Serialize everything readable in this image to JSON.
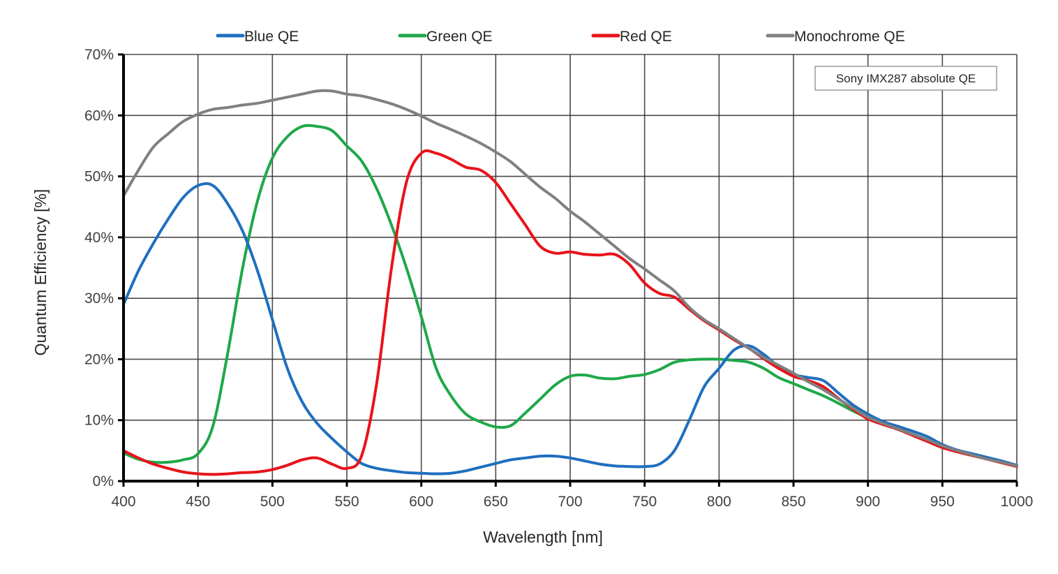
{
  "chart_data": {
    "type": "line",
    "title": "",
    "annotation": "Sony IMX287 absolute QE",
    "xlabel": "Wavelength [nm]",
    "ylabel": "Quantum Efficiency [%]",
    "xlim": [
      400,
      1000
    ],
    "ylim": [
      0,
      70
    ],
    "x_ticks": [
      400,
      450,
      500,
      550,
      600,
      650,
      700,
      750,
      800,
      850,
      900,
      950,
      1000
    ],
    "x_tick_labels": [
      "400",
      "450",
      "500",
      "550",
      "600",
      "650",
      "700",
      "750",
      "800",
      "850",
      "900",
      "950",
      "1000"
    ],
    "y_ticks": [
      0,
      10,
      20,
      30,
      40,
      50,
      60,
      70
    ],
    "y_tick_labels": [
      "0%",
      "10%",
      "20%",
      "30%",
      "40%",
      "50%",
      "60%",
      "70%"
    ],
    "grid": true,
    "legend_position": "top",
    "x": [
      400,
      410,
      420,
      430,
      440,
      450,
      460,
      470,
      480,
      490,
      500,
      510,
      520,
      530,
      540,
      550,
      560,
      570,
      580,
      590,
      600,
      610,
      620,
      630,
      640,
      650,
      660,
      670,
      680,
      690,
      700,
      710,
      720,
      730,
      740,
      750,
      760,
      770,
      780,
      790,
      800,
      810,
      820,
      830,
      840,
      850,
      860,
      870,
      880,
      890,
      900,
      910,
      920,
      930,
      940,
      950,
      960,
      970,
      980,
      990,
      1000
    ],
    "series": [
      {
        "name": "Blue QE",
        "color": "#1f6fbf",
        "values": [
          29,
          34.5,
          39,
          43,
          46.5,
          48.5,
          48.5,
          45.5,
          41,
          34.5,
          26.5,
          18.5,
          13,
          9.5,
          7,
          4.8,
          2.9,
          2.1,
          1.7,
          1.4,
          1.3,
          1.2,
          1.3,
          1.7,
          2.3,
          2.9,
          3.5,
          3.8,
          4.1,
          4.1,
          3.8,
          3.3,
          2.8,
          2.5,
          2.4,
          2.4,
          2.8,
          5,
          10,
          15.5,
          18.5,
          21.5,
          22.2,
          20.8,
          18.8,
          17.5,
          17,
          16.5,
          14.5,
          12.5,
          11,
          9.8,
          9,
          8.2,
          7.3,
          6,
          5.1,
          4.5,
          3.9,
          3.3,
          2.6
        ]
      },
      {
        "name": "Green QE",
        "color": "#1fa84a",
        "values": [
          4.6,
          3.6,
          3.1,
          3.1,
          3.5,
          4.5,
          9,
          21,
          35,
          46,
          53,
          56.5,
          58.2,
          58.2,
          57.5,
          55,
          52.5,
          48,
          42,
          35,
          27,
          18.5,
          14,
          11,
          9.7,
          8.9,
          9.1,
          11.2,
          13.5,
          15.8,
          17.2,
          17.4,
          16.9,
          16.8,
          17.2,
          17.5,
          18.3,
          19.5,
          19.9,
          20,
          20,
          19.8,
          19.5,
          18.5,
          17,
          16,
          15,
          14,
          12.8,
          11.5,
          10.4,
          9.5,
          8.5,
          7.6,
          6.6,
          5.5,
          4.9,
          4.3,
          3.7,
          3.1,
          2.4
        ]
      },
      {
        "name": "Red QE",
        "color": "#e8131b",
        "values": [
          5,
          3.8,
          2.8,
          2.1,
          1.5,
          1.2,
          1.1,
          1.2,
          1.4,
          1.5,
          1.9,
          2.6,
          3.5,
          3.8,
          2.8,
          2.1,
          4.2,
          16,
          35,
          49,
          53.8,
          53.8,
          52.8,
          51.5,
          51,
          49,
          45.5,
          42,
          38.5,
          37.4,
          37.6,
          37.2,
          37.1,
          37.2,
          35.5,
          32.5,
          30.8,
          30.2,
          28.2,
          26.3,
          24.8,
          23.2,
          21.8,
          20.1,
          18.5,
          17.2,
          16.5,
          15.5,
          13.6,
          11.8,
          10.2,
          9.3,
          8.5,
          7.5,
          6.5,
          5.5,
          4.8,
          4.2,
          3.6,
          3,
          2.4
        ]
      },
      {
        "name": "Monochrome QE",
        "color": "#808080",
        "values": [
          46.8,
          51,
          54.8,
          57,
          59,
          60.2,
          61,
          61.3,
          61.7,
          62,
          62.5,
          63,
          63.5,
          64,
          64,
          63.5,
          63.2,
          62.6,
          61.9,
          61,
          59.9,
          58.7,
          57.7,
          56.6,
          55.4,
          54,
          52.4,
          50.3,
          48.2,
          46.4,
          44.3,
          42.5,
          40.5,
          38.5,
          36.5,
          34.8,
          33,
          31.2,
          28.5,
          26.5,
          25,
          23.4,
          21.8,
          20.3,
          19,
          17.7,
          16.3,
          15,
          13.5,
          12,
          10.5,
          9.5,
          8.6,
          7.7,
          6.8,
          5.8,
          5,
          4.3,
          3.6,
          3.1,
          2.5
        ]
      }
    ]
  }
}
